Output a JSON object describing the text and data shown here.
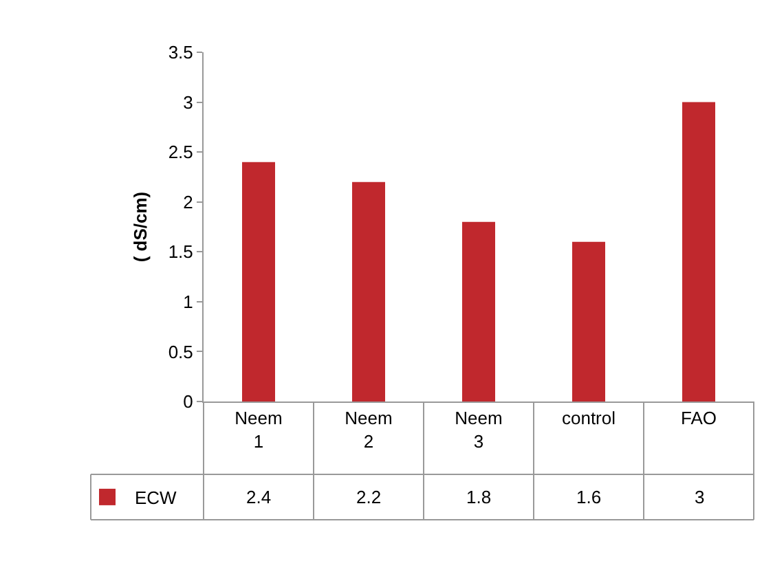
{
  "chart_data": {
    "type": "bar",
    "ylabel": "( dS/cm)",
    "categories": [
      "Neem 1",
      "Neem 2",
      "Neem 3",
      "control",
      "FAO"
    ],
    "series": [
      {
        "name": "ECW",
        "color": "#c0282d",
        "values": [
          2.4,
          2.2,
          1.8,
          1.6,
          3
        ]
      }
    ],
    "ylim": [
      0,
      3.5
    ],
    "yticks": [
      0,
      0.5,
      1,
      1.5,
      2,
      2.5,
      3,
      3.5
    ],
    "grid": false,
    "legend": "bottom left",
    "data_labels": true
  }
}
